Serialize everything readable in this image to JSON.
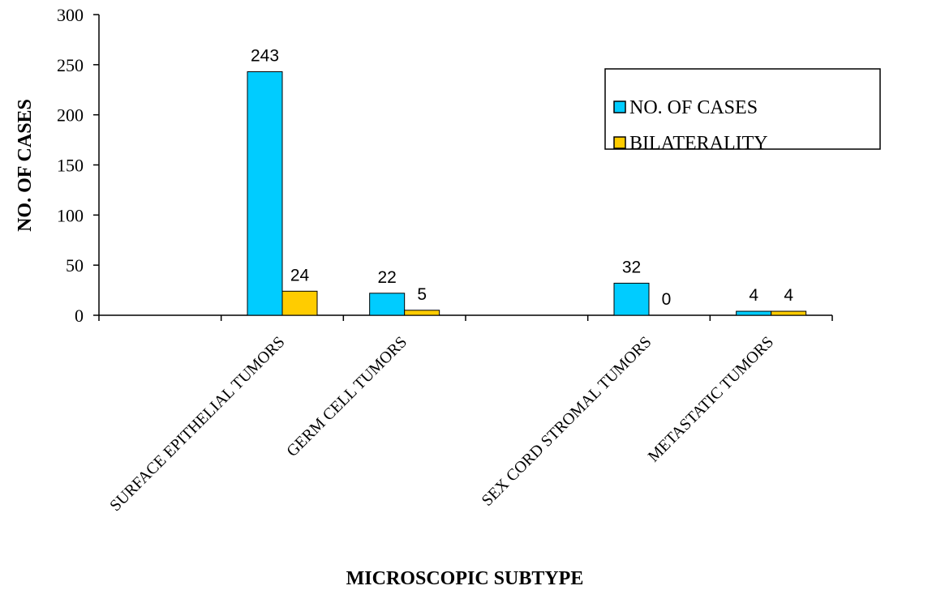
{
  "chart_data": {
    "type": "bar",
    "title": "",
    "xlabel": "MICROSCOPIC SUBTYPE",
    "ylabel": "NO. OF CASES",
    "ylim": [
      0,
      300
    ],
    "yticks": [
      0,
      50,
      100,
      150,
      200,
      250,
      300
    ],
    "grid": false,
    "legend_position": "top-right",
    "categories": [
      "",
      "SURFACE EPITHELIAL TUMORS",
      "GERM CELL TUMORS",
      "",
      "SEX CORD STROMAL TUMORS",
      "METASTATIC TUMORS"
    ],
    "series": [
      {
        "name": "NO. OF CASES",
        "color": "#00ccff",
        "values": [
          null,
          243,
          22,
          null,
          32,
          4
        ]
      },
      {
        "name": "BILATERALITY",
        "color": "#ffcc00",
        "values": [
          null,
          24,
          5,
          null,
          0,
          4
        ]
      }
    ]
  }
}
